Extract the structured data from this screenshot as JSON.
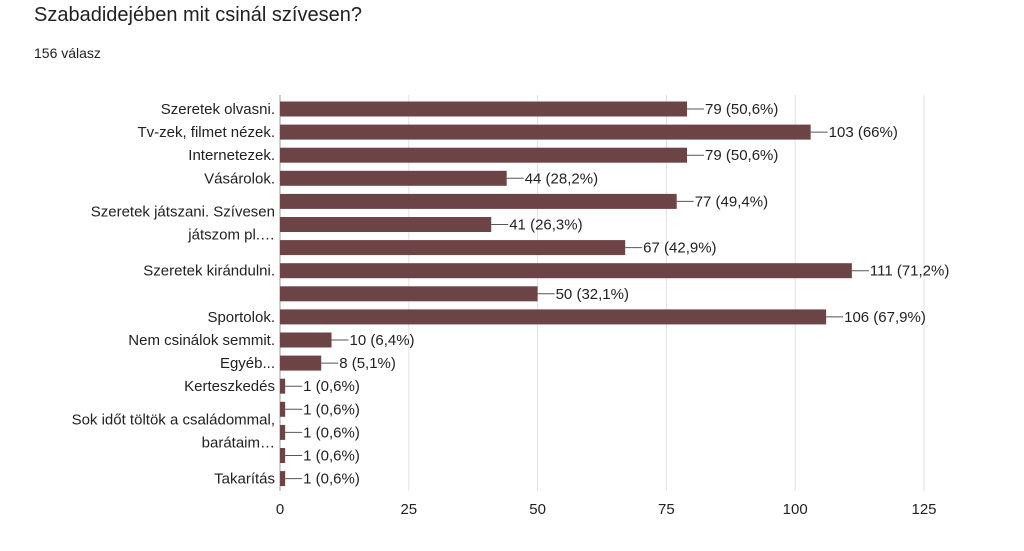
{
  "question": {
    "title": "Szabadidejében mit csinál szívesen?",
    "responses": "156 válasz"
  },
  "colors": {
    "bar": "#6d4446",
    "grid": "#e0e0e0",
    "text": "#222222"
  },
  "chart_data": {
    "type": "bar",
    "orientation": "horizontal",
    "xlim": [
      0,
      125
    ],
    "xticks": [
      0,
      25,
      50,
      75,
      100,
      125
    ],
    "grid": true,
    "legend": "none",
    "categories": [
      "Szeretek olvasni.",
      "Tv-zek, filmet nézek.",
      "Internetezek.",
      "Vásárolok.",
      "Szeretek játszani. Szívesen játszom pl....",
      "",
      "",
      "Szeretek kirándulni.",
      "",
      "Sportolok.",
      "Nem csinálok semmit.",
      "Egyéb...",
      "Kerteszkedés",
      "Sok időt töltök a családommal, barátaim...",
      "",
      "",
      "Takarítás"
    ],
    "category_label_lines": [
      [
        "Szeretek olvasni."
      ],
      [
        "Tv-zek, filmet nézek."
      ],
      [
        "Internetezek."
      ],
      [
        "Vásárolok."
      ],
      [
        "Szeretek játszani. Szívesen",
        "játszom pl.…"
      ],
      [],
      [],
      [
        "Szeretek kirándulni."
      ],
      [],
      [
        "Sportolok."
      ],
      [
        "Nem csinálok semmit."
      ],
      [
        "Egyéb..."
      ],
      [
        "Kerteszkedés"
      ],
      [
        "Sok időt töltök a családommal,",
        "barátaim…"
      ],
      [],
      [],
      [
        "Takarítás"
      ]
    ],
    "values": [
      79,
      103,
      79,
      44,
      77,
      41,
      67,
      111,
      50,
      106,
      10,
      8,
      1,
      1,
      1,
      1,
      1
    ],
    "value_labels": [
      "79 (50,6%)",
      "103 (66%)",
      "79 (50,6%)",
      "44 (28,2%)",
      "77 (49,4%)",
      "41 (26,3%)",
      "67 (42,9%)",
      "111 (71,2%)",
      "50 (32,1%)",
      "106 (67,9%)",
      "10 (6,4%)",
      "8 (5,1%)",
      "1 (0,6%)",
      "1 (0,6%)",
      "1 (0,6%)",
      "1 (0,6%)",
      "1 (0,6%)"
    ]
  }
}
